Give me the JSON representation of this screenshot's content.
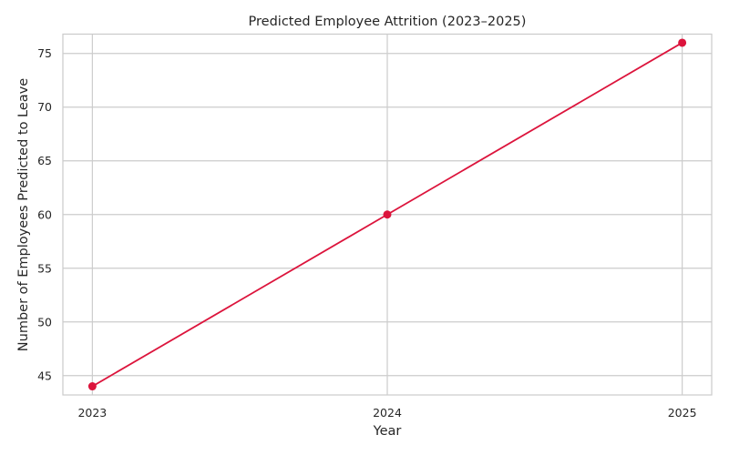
{
  "chart_data": {
    "type": "line",
    "title": "Predicted Employee Attrition (2023–2025)",
    "xlabel": "Year",
    "ylabel": "Number of Employees Predicted to Leave",
    "x": [
      "2023",
      "2024",
      "2025"
    ],
    "series": [
      {
        "values": [
          44,
          60,
          76
        ],
        "color": "#dc143c",
        "marker": "circle"
      }
    ],
    "xlim": [
      2022.9,
      2025.1
    ],
    "ylim": [
      43.2,
      76.8
    ],
    "yticks": [
      "45",
      "50",
      "55",
      "60",
      "65",
      "70",
      "75"
    ],
    "grid": true,
    "legend": "none",
    "colors": {
      "line": "#dc143c",
      "grid": "#cccccc",
      "axes_edge": "#cccccc",
      "text": "#262626"
    }
  }
}
